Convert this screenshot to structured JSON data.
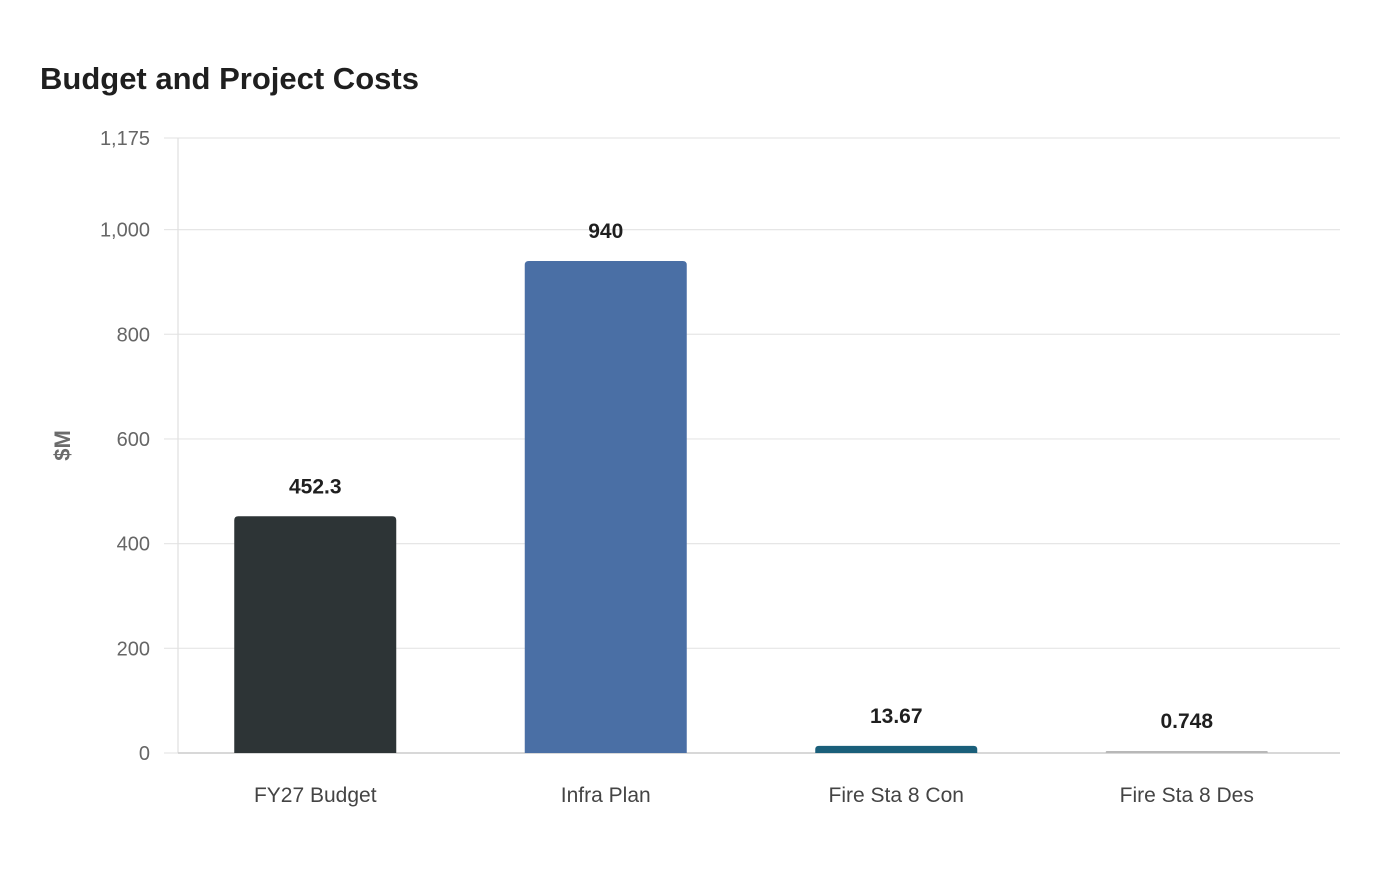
{
  "chart_data": {
    "type": "bar",
    "title": "Budget and Project Costs",
    "xlabel": "",
    "ylabel": "$M",
    "categories": [
      "FY27 Budget",
      "Infra Plan",
      "Fire Sta 8 Con",
      "Fire Sta 8 Des"
    ],
    "values": [
      452.3,
      940,
      13.67,
      0.748
    ],
    "value_labels": [
      "452.3",
      "940",
      "13.67",
      "0.748"
    ],
    "colors": [
      "#2d3436",
      "#4a6fa5",
      "#1a5f7a",
      "#b8b8b8"
    ],
    "ylim": [
      0,
      1175
    ],
    "yticks": [
      0,
      200,
      400,
      600,
      800,
      1000,
      1175
    ],
    "ytick_labels": [
      "0",
      "200",
      "400",
      "600",
      "800",
      "1,000",
      "1,175"
    ],
    "grid": true,
    "legend": "none"
  }
}
